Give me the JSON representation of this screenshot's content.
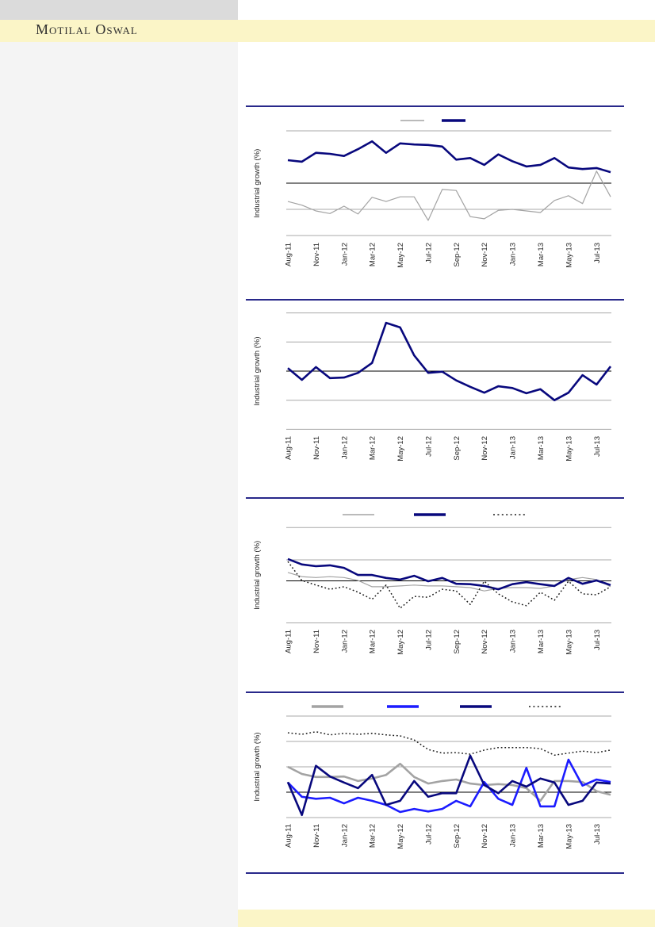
{
  "header": {
    "brand": "Motilal Oswal"
  },
  "colors": {
    "brand_band_bg": "#FBF5C7",
    "top_bar_bg": "#DBDBDB",
    "sidebar_bg": "#F4F4F4",
    "separator_line": "#28288A",
    "gridline": "#A9A9A9",
    "zero_line": "#000000",
    "brand_text": "#2E2E2E",
    "tick_text": "#262626",
    "series_gray": "#A3A3A3",
    "series_navy": "#08087D",
    "series_blue": "#1C1CFF",
    "series_dotted": "#1A1A1A"
  },
  "chart_data": [
    {
      "type": "line",
      "title": "",
      "ylabel": "Industrial growth (%)",
      "xlabel": "",
      "x_categories": [
        "Aug-11",
        "Sep-11",
        "Oct-11",
        "Nov-11",
        "Dec-11",
        "Jan-12",
        "Feb-12",
        "Mar-12",
        "Apr-12",
        "May-12",
        "Jun-12",
        "Jul-12",
        "Aug-12",
        "Sep-12",
        "Oct-12",
        "Nov-12",
        "Dec-12",
        "Jan-13",
        "Feb-13",
        "Mar-13",
        "Apr-13",
        "May-13",
        "Jun-13",
        "Jul-13"
      ],
      "x_tick_labels": [
        "Aug-11",
        "Nov-11",
        "Jan-12",
        "Mar-12",
        "May-12",
        "Jul-12",
        "Sep-12",
        "Nov-12",
        "Jan-13",
        "Mar-13",
        "May-13",
        "Jul-13"
      ],
      "ylim": [
        -10.1,
        10
      ],
      "gridlines": [
        10,
        -5,
        -10
      ],
      "zero_line": true,
      "grid": true,
      "legend_position": "top",
      "legend_labels_visible": false,
      "series": [
        {
          "label": "",
          "color": "#A3A3A3",
          "style": "solid",
          "weight": "thin",
          "values": [
            -3.5,
            -4.2,
            -5.3,
            -5.8,
            -4.4,
            -5.9,
            -2.7,
            -3.5,
            -2.6,
            -2.6,
            -7.1,
            -1.2,
            -1.4,
            -6.4,
            -6.8,
            -5.2,
            -5.0,
            -5.3,
            -5.6,
            -3.3,
            -2.4,
            -3.9,
            2.3,
            -2.6
          ]
        },
        {
          "label": "",
          "color": "#08087D",
          "style": "solid",
          "weight": "thick",
          "values": [
            4.4,
            4.1,
            5.8,
            5.6,
            5.2,
            6.5,
            8.0,
            5.8,
            7.6,
            7.4,
            7.3,
            7.0,
            4.5,
            4.8,
            3.5,
            5.5,
            4.2,
            3.2,
            3.5,
            4.8,
            3.0,
            2.7,
            2.9,
            2.1
          ]
        }
      ]
    },
    {
      "type": "line",
      "title": "",
      "ylabel": "Industrial growth (%)",
      "xlabel": "",
      "x_categories": [
        "Aug-11",
        "Sep-11",
        "Oct-11",
        "Nov-11",
        "Dec-11",
        "Jan-12",
        "Feb-12",
        "Mar-12",
        "Apr-12",
        "May-12",
        "Jun-12",
        "Jul-12",
        "Aug-12",
        "Sep-12",
        "Oct-12",
        "Nov-12",
        "Dec-12",
        "Jan-13",
        "Feb-13",
        "Mar-13",
        "Apr-13",
        "May-13",
        "Jun-13",
        "Jul-13"
      ],
      "x_tick_labels": [
        "Aug-11",
        "Nov-11",
        "Jan-12",
        "Mar-12",
        "May-12",
        "Jul-12",
        "Sep-12",
        "Nov-12",
        "Jan-13",
        "Mar-13",
        "May-13",
        "Jul-13"
      ],
      "ylim": [
        -10.1,
        10
      ],
      "gridlines": [
        10,
        5,
        -5,
        -10
      ],
      "zero_line": true,
      "grid": true,
      "legend_position": null,
      "legend_labels_visible": false,
      "series": [
        {
          "label": "",
          "color": "#08087D",
          "style": "solid",
          "weight": "thick",
          "values": [
            0.5,
            -1.5,
            0.7,
            -1.2,
            -1.1,
            -0.3,
            1.4,
            8.3,
            7.5,
            2.7,
            -0.3,
            -0.1,
            -1.6,
            -2.7,
            -3.7,
            -2.6,
            -2.9,
            -3.8,
            -3.1,
            -5.0,
            -3.7,
            -0.7,
            -2.3,
            0.8
          ]
        }
      ]
    },
    {
      "type": "line",
      "title": "",
      "ylabel": "Industrial growth (%)",
      "xlabel": "",
      "x_categories": [
        "Aug-11",
        "Sep-11",
        "Oct-11",
        "Nov-11",
        "Dec-11",
        "Jan-12",
        "Feb-12",
        "Mar-12",
        "Apr-12",
        "May-12",
        "Jun-12",
        "Jul-12",
        "Aug-12",
        "Sep-12",
        "Oct-12",
        "Nov-12",
        "Dec-12",
        "Jan-13",
        "Feb-13",
        "Mar-13",
        "Apr-13",
        "May-13",
        "Jun-13",
        "Jul-13"
      ],
      "x_tick_labels": [
        "Aug-11",
        "Nov-11",
        "Jan-12",
        "Mar-12",
        "May-12",
        "Jul-12",
        "Sep-12",
        "Nov-12",
        "Jan-13",
        "Mar-13",
        "May-13",
        "Jul-13"
      ],
      "ylim": [
        -10,
        12.7
      ],
      "gridlines": [
        12.7,
        5,
        -10
      ],
      "zero_line": true,
      "grid": true,
      "legend_position": "top",
      "legend_labels_visible": false,
      "series": [
        {
          "label": "",
          "color": "#A3A3A3",
          "style": "solid",
          "weight": "thin",
          "values": [
            2.0,
            1.0,
            0.8,
            1.0,
            0.8,
            0.1,
            -1.4,
            -1.4,
            -1.2,
            -1.0,
            -1.2,
            -1.2,
            -1.4,
            -1.6,
            -2.4,
            -1.8,
            -1.6,
            -1.6,
            -1.8,
            -1.2,
            0.3,
            0.8,
            0.3,
            -1.4
          ]
        },
        {
          "label": "",
          "color": "#08087D",
          "style": "solid",
          "weight": "thick",
          "values": [
            5.2,
            3.9,
            3.5,
            3.7,
            3.1,
            1.4,
            1.4,
            0.7,
            0.3,
            1.2,
            -0.1,
            0.7,
            -0.7,
            -0.8,
            -1.2,
            -2.0,
            -0.8,
            -0.3,
            -0.8,
            -1.2,
            0.7,
            -0.7,
            0.1,
            -1.0
          ]
        },
        {
          "label": "",
          "color": "#1A1A1A",
          "style": "dotted",
          "weight": "thin",
          "values": [
            4.6,
            0.1,
            -1.0,
            -2.0,
            -1.4,
            -2.7,
            -4.4,
            -1.0,
            -6.5,
            -3.7,
            -3.9,
            -2.0,
            -2.4,
            -5.6,
            -0.1,
            -3.1,
            -5.0,
            -5.9,
            -2.7,
            -4.6,
            -0.1,
            -3.1,
            -3.3,
            -1.4
          ]
        }
      ]
    },
    {
      "type": "line",
      "title": "",
      "ylabel": "Industrial growth (%)",
      "xlabel": "",
      "x_categories": [
        "Aug-11",
        "Sep-11",
        "Oct-11",
        "Nov-11",
        "Dec-11",
        "Jan-12",
        "Feb-12",
        "Mar-12",
        "Apr-12",
        "May-12",
        "Jun-12",
        "Jul-12",
        "Aug-12",
        "Sep-12",
        "Oct-12",
        "Nov-12",
        "Dec-12",
        "Jan-13",
        "Feb-13",
        "Mar-13",
        "Apr-13",
        "May-13",
        "Jun-13",
        "Jul-13"
      ],
      "x_tick_labels": [
        "Aug-11",
        "Nov-11",
        "Jan-12",
        "Mar-12",
        "May-12",
        "Jul-12",
        "Sep-12",
        "Nov-12",
        "Jan-13",
        "Mar-13",
        "May-13",
        "Jul-13"
      ],
      "ylim": [
        -5,
        15
      ],
      "gridlines": [
        15,
        10,
        5,
        -5
      ],
      "zero_line": true,
      "grid": true,
      "legend_position": "top",
      "legend_labels_visible": false,
      "series": [
        {
          "label": "",
          "color": "#A3A3A3",
          "style": "solid",
          "weight": "thick",
          "values": [
            5.0,
            3.6,
            3.0,
            3.0,
            3.1,
            2.2,
            2.7,
            3.4,
            5.6,
            3.0,
            1.7,
            2.2,
            2.5,
            1.7,
            1.4,
            1.6,
            1.4,
            0.8,
            -1.7,
            2.2,
            2.2,
            2.0,
            0.2,
            -0.5
          ]
        },
        {
          "label": "",
          "color": "#1C1CFF",
          "style": "solid",
          "weight": "thick",
          "values": [
            1.9,
            -0.9,
            -1.3,
            -1.1,
            -2.2,
            -1.1,
            -1.7,
            -2.5,
            -3.9,
            -3.3,
            -3.8,
            -3.3,
            -1.7,
            -2.8,
            2.0,
            -1.3,
            -2.5,
            4.8,
            -2.8,
            -2.8,
            6.4,
            1.3,
            2.5,
            2.0
          ]
        },
        {
          "label": "",
          "color": "#08087D",
          "style": "solid",
          "weight": "thick",
          "values": [
            2.0,
            -4.5,
            5.2,
            3.1,
            1.9,
            0.8,
            3.4,
            -2.5,
            -1.7,
            2.2,
            -0.9,
            -0.2,
            -0.2,
            7.2,
            1.4,
            -0.2,
            2.2,
            1.1,
            2.7,
            1.9,
            -2.5,
            -1.7,
            1.9,
            1.7
          ]
        },
        {
          "label": "",
          "color": "#1A1A1A",
          "style": "dotted",
          "weight": "thin",
          "values": [
            11.7,
            11.4,
            11.9,
            11.3,
            11.6,
            11.4,
            11.6,
            11.3,
            11.1,
            10.3,
            8.4,
            7.7,
            7.8,
            7.5,
            8.3,
            8.8,
            8.8,
            8.8,
            8.6,
            7.3,
            7.7,
            8.1,
            7.8,
            8.3
          ]
        }
      ]
    }
  ]
}
